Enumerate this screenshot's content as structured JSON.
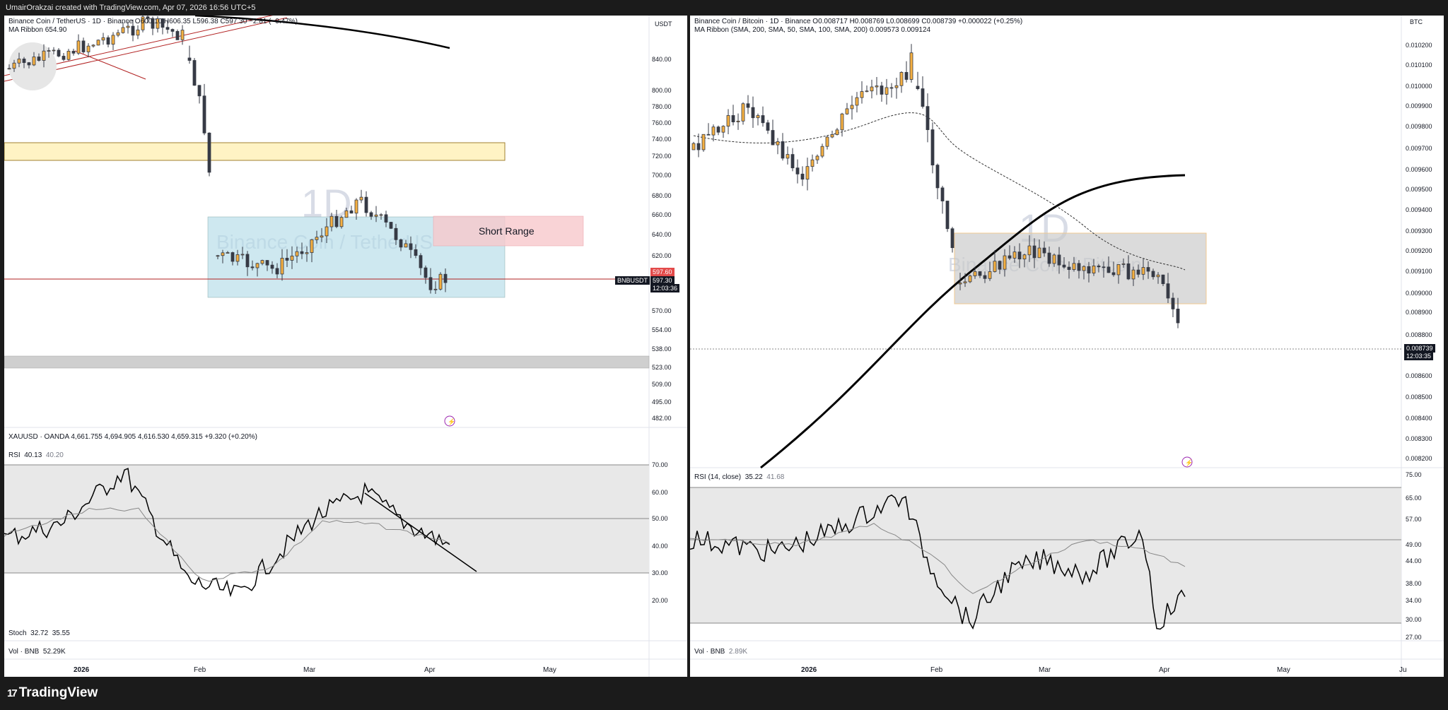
{
  "topbar": {
    "text": "UmairOrakzai created with TradingView.com, Apr 07, 2026 16:56 UTC+5"
  },
  "footer": {
    "brand": "TradingView",
    "brand_mark": "17"
  },
  "left_chart": {
    "legend_main": "Binance Coin / TetherUS · 1D · Binance  O600.10  H606.35  L596.38  C597.30  −2.81 (−0.47%)",
    "legend_ma": "MA Ribbon  654.90",
    "currency": "USDT",
    "watermark_interval": "1D",
    "watermark_name": "Binance Coin / TetherUS",
    "short_range_label": "Short Range",
    "ticker_tag": "BNBUSDT",
    "last_price": "597.30",
    "countdown": "12:03:36",
    "red_price": "597.60",
    "price_ticks": [
      "840.00",
      "800.00",
      "780.00",
      "760.00",
      "740.00",
      "720.00",
      "700.00",
      "680.00",
      "660.00",
      "640.00",
      "620.00",
      "570.00",
      "554.00",
      "538.00",
      "523.00",
      "509.00",
      "495.00",
      "482.00"
    ],
    "sub_legend": "XAUUSD · OANDA  4,661.755  4,694.905  4,616.530  4,659.315  +9.320 (+0.20%)",
    "rsi_legend": "RSI",
    "rsi_value": "40.13",
    "rsi_ma_value": "40.20",
    "rsi_ticks": [
      "70.00",
      "60.00",
      "50.00",
      "40.00",
      "30.00",
      "20.00"
    ],
    "stoch_legend": "Stoch",
    "stoch_k": "32.72",
    "stoch_d": "35.55",
    "vol_legend": "Vol · BNB",
    "vol_value": "52.29K",
    "time_ticks": [
      "2026",
      "Feb",
      "Mar",
      "Apr",
      "May"
    ]
  },
  "right_chart": {
    "legend_main": "Binance Coin / Bitcoin · 1D · Binance  O0.008717  H0.008769  L0.008699  C0.008739  +0.000022 (+0.25%)",
    "legend_ma": "MA Ribbon (SMA, 200, SMA, 50, SMA, 100, SMA, 200)  0.009573  0.009124",
    "currency": "BTC",
    "watermark_interval": "1D",
    "watermark_name": "Binance Coin / Bitcoin",
    "last_price": "0.008739",
    "countdown": "12:03:35",
    "price_ticks": [
      "0.010200",
      "0.010100",
      "0.010000",
      "0.009900",
      "0.009800",
      "0.009700",
      "0.009600",
      "0.009500",
      "0.009400",
      "0.009300",
      "0.009200",
      "0.009100",
      "0.009000",
      "0.008900",
      "0.008800",
      "0.008600",
      "0.008500",
      "0.008400",
      "0.008300",
      "0.008200"
    ],
    "rsi_legend": "RSI (14, close)",
    "rsi_value": "35.22",
    "rsi_ma_value": "41.68",
    "rsi_ticks": [
      "75.00",
      "65.00",
      "57.00",
      "49.00",
      "44.00",
      "38.00",
      "34.00",
      "30.00",
      "27.00"
    ],
    "vol_legend": "Vol · BNB",
    "vol_value": "2.89K",
    "time_ticks": [
      "2026",
      "Feb",
      "Mar",
      "Apr",
      "May",
      "Ju"
    ]
  },
  "colors": {
    "bull_candle": "#f5b041",
    "bear_candle": "#363a45",
    "range_box_left": "#add8e6",
    "range_box_right": "#c8c8c8",
    "short_range_box": "#f8c8cc",
    "supply_zone": "#fff3c4",
    "price_line": "#b22222",
    "rsi_band": "#e8e8e8"
  },
  "icons": {
    "lightning": "lightning-icon"
  }
}
